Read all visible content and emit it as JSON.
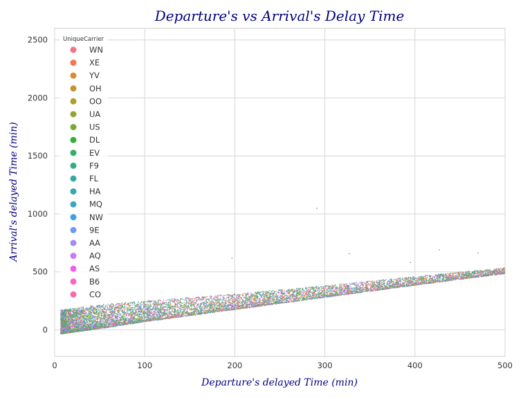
{
  "chart_data": {
    "type": "scatter",
    "title": "Departure's vs Arrival's Delay Time",
    "xlabel": "Departure's delayed Time (min)",
    "ylabel": "Arrival's delayed Time (min)",
    "xlim": [
      0,
      500
    ],
    "ylim": [
      -230,
      2600
    ],
    "xticks": [
      0,
      100,
      200,
      300,
      400,
      500
    ],
    "yticks": [
      0,
      500,
      1000,
      1500,
      2000,
      2500
    ],
    "grid": true,
    "legend": {
      "title": "UniqueCarrier",
      "placement": "top-left",
      "entries": [
        "WN",
        "XE",
        "YV",
        "OH",
        "OO",
        "UA",
        "US",
        "DL",
        "EV",
        "F9",
        "FL",
        "HA",
        "MQ",
        "NW",
        "9E",
        "AA",
        "AQ",
        "AS",
        "B6",
        "CO"
      ]
    },
    "colors": [
      "#f77189",
      "#f7754f",
      "#dc8932",
      "#c39532",
      "#ae9d31",
      "#97a431",
      "#77ab31",
      "#33b039",
      "#35ad6b",
      "#36ab8a",
      "#37a99f",
      "#38a7b3",
      "#3aa5c8",
      "#3ea1e4",
      "#6e9af4",
      "#a38cf4",
      "#cc79f4",
      "#f45deb",
      "#f565cc",
      "#f66baf"
    ],
    "trend": {
      "x": [
        7,
        50,
        100,
        200,
        300,
        400,
        500
      ],
      "y": [
        0,
        45,
        100,
        200,
        300,
        400,
        495
      ]
    },
    "spread_above": [
      170,
      170,
      150,
      110,
      80,
      60,
      40
    ],
    "spread_below": [
      35,
      35,
      30,
      25,
      20,
      15,
      10
    ],
    "outliers": [
      {
        "x": 291,
        "y": 1048
      },
      {
        "x": 327,
        "y": 658
      },
      {
        "x": 427,
        "y": 690
      },
      {
        "x": 197,
        "y": 618
      },
      {
        "x": 395,
        "y": 580
      },
      {
        "x": 470,
        "y": 662
      }
    ]
  }
}
